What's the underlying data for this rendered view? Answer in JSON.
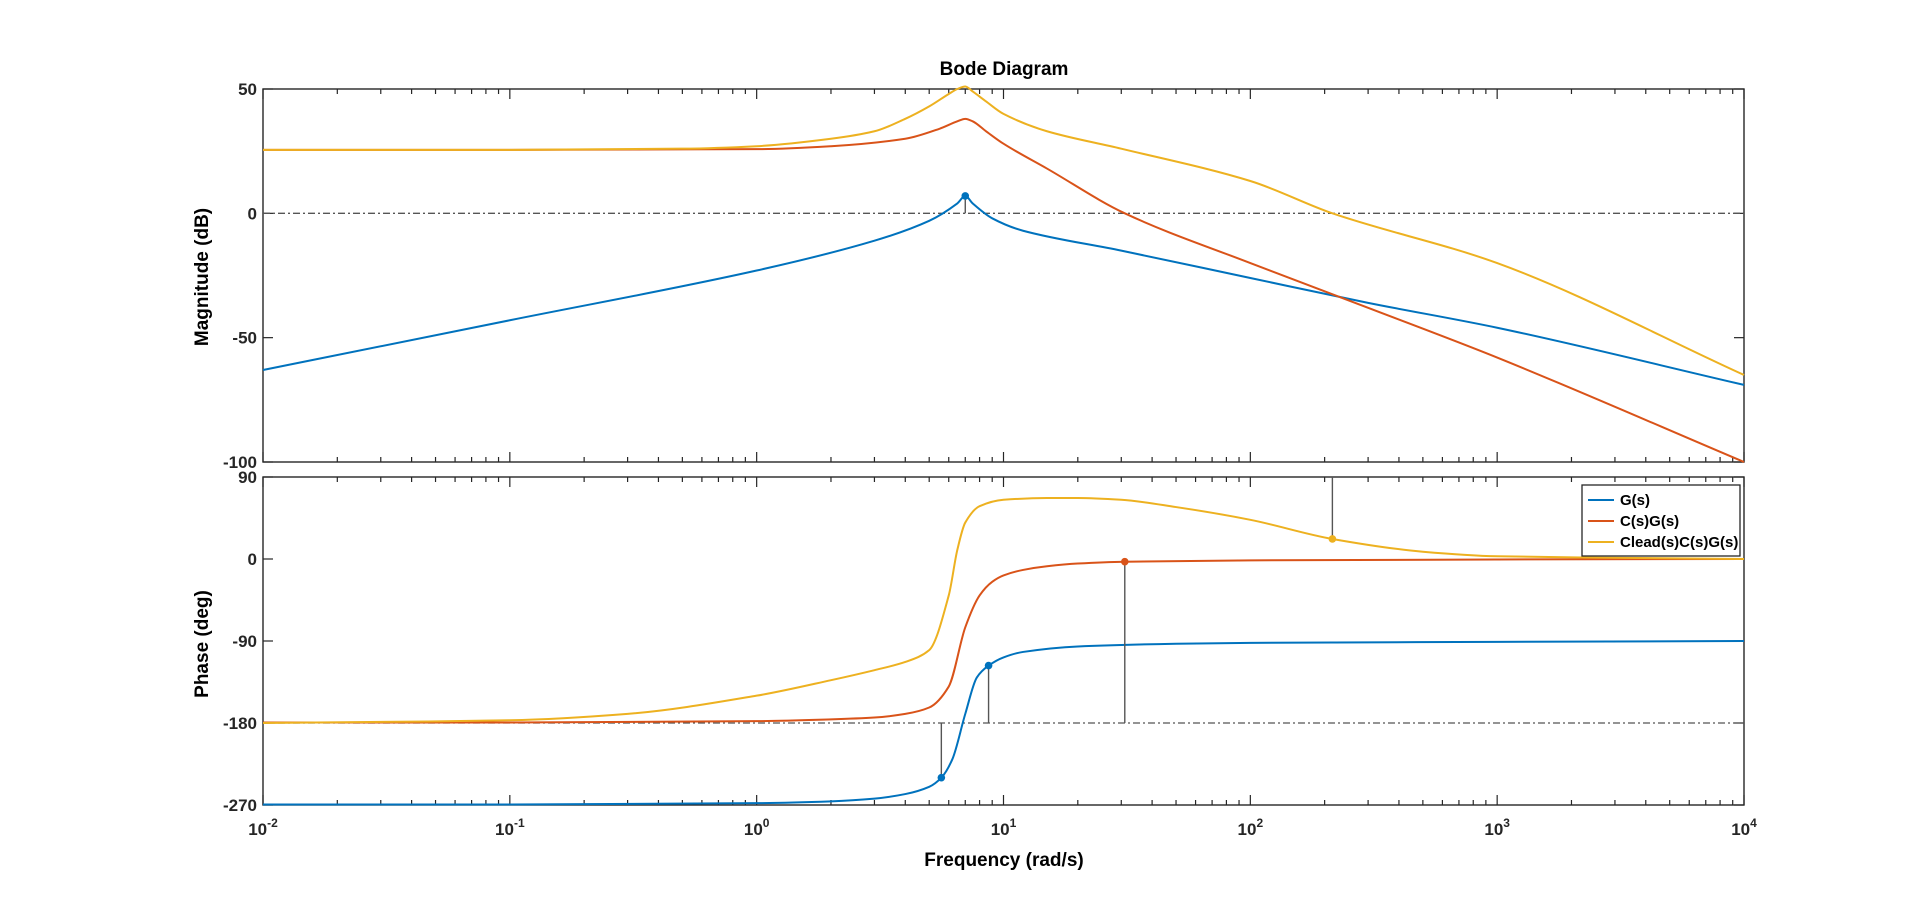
{
  "chart_data": {
    "type": "line",
    "title": "Bode Diagram",
    "xlabel": "Frequency  (rad/s)",
    "x_scale": "log",
    "xlim": [
      0.01,
      10000
    ],
    "x_tick_labels": [
      {
        "base": "10",
        "exp": "-2"
      },
      {
        "base": "10",
        "exp": "-1"
      },
      {
        "base": "10",
        "exp": "0"
      },
      {
        "base": "10",
        "exp": "1"
      },
      {
        "base": "10",
        "exp": "2"
      },
      {
        "base": "10",
        "exp": "3"
      },
      {
        "base": "10",
        "exp": "4"
      }
    ],
    "legend_position": "top-right",
    "grid": false,
    "panels": [
      {
        "ylabel": "Magnitude (dB)",
        "ylim": [
          -100,
          50
        ],
        "y_ticks": [
          -100,
          -50,
          0,
          50
        ],
        "reference_line": 0,
        "series": [
          {
            "name": "G(s)",
            "color": "#0072BD",
            "x": [
              0.01,
              0.1,
              1,
              3,
              5,
              6.5,
              7,
              7.5,
              9,
              12,
              30,
              100,
              300,
              1000,
              10000
            ],
            "y": [
              -63,
              -43,
              -23,
              -11,
              -3,
              4,
              7,
              4,
              -2,
              -7,
              -15,
              -26,
              -36,
              -46,
              -69
            ],
            "markers": [
              {
                "x": 7,
                "y": 7,
                "stem_to": 0
              }
            ]
          },
          {
            "name": "C(s)G(s)",
            "color": "#D95319",
            "x": [
              0.01,
              0.1,
              1,
              2,
              4,
              5.5,
              6.5,
              7,
              7.5,
              8.5,
              10,
              15,
              31,
              100,
              300,
              1000,
              10000
            ],
            "y": [
              25.5,
              25.5,
              25.8,
              27,
              30,
              34,
              37,
              38,
              37,
              33,
              28,
              18,
              0,
              -20,
              -38,
              -58,
              -100
            ],
            "markers": []
          },
          {
            "name": "Clead(s)C(s)G(s)",
            "color": "#EDB120",
            "x": [
              0.01,
              0.1,
              0.5,
              1,
              2,
              3,
              4,
              5,
              6,
              6.5,
              7,
              7.5,
              8.5,
              10,
              15,
              30,
              100,
              215,
              1000,
              10000
            ],
            "y": [
              25.5,
              25.5,
              26,
              27,
              30,
              33,
              38,
              43,
              48,
              50,
              51,
              49,
              45,
              40,
              33,
              26,
              13,
              0,
              -20,
              -65
            ],
            "markers": []
          }
        ]
      },
      {
        "ylabel": "Phase (deg)",
        "ylim": [
          -270,
          90
        ],
        "y_ticks": [
          -270,
          -180,
          -90,
          0,
          90
        ],
        "reference_line": -180,
        "series": [
          {
            "name": "G(s)",
            "color": "#0072BD",
            "x": [
              0.01,
              0.1,
              1,
              2,
              3,
              4,
              5,
              5.6,
              6.2,
              7,
              7.8,
              8.7,
              10,
              12,
              20,
              50,
              100,
              1000,
              10000
            ],
            "y": [
              -269.5,
              -269.5,
              -268,
              -266,
              -263,
              -258,
              -250,
              -240,
              -220,
              -170,
              -130,
              -117,
              -108,
              -102,
              -96,
              -93,
              -92,
              -91,
              -90
            ],
            "markers": [
              {
                "x": 5.6,
                "y": -240,
                "stem_to": -180
              },
              {
                "x": 8.7,
                "y": -117,
                "stem_to": -180
              }
            ]
          },
          {
            "name": "C(s)G(s)",
            "color": "#D95319",
            "x": [
              0.01,
              0.1,
              1,
              2,
              3,
              4,
              5,
              6,
              7,
              8,
              9,
              10,
              12,
              15,
              20,
              31,
              100,
              1000,
              10000
            ],
            "y": [
              -179.5,
              -179.5,
              -178,
              -176,
              -174,
              -170,
              -163,
              -140,
              -75,
              -40,
              -25,
              -18,
              -12,
              -8,
              -5,
              -3,
              -1.5,
              -0.5,
              0
            ],
            "markers": [
              {
                "x": 31,
                "y": -3,
                "stem_to": -180
              }
            ]
          },
          {
            "name": "Clead(s)C(s)G(s)",
            "color": "#EDB120",
            "x": [
              0.01,
              0.1,
              0.3,
              1,
              2,
              3,
              4,
              5,
              6,
              6.5,
              7,
              8,
              10,
              15,
              20,
              30,
              50,
              100,
              215,
              500,
              1000,
              10000
            ],
            "y": [
              -180,
              -177,
              -170,
              -150,
              -133,
              -122,
              -113,
              -100,
              -40,
              10,
              40,
              58,
              65,
              67,
              67,
              65,
              57,
              43,
              22,
              8,
              3,
              0
            ],
            "markers": [
              {
                "x": 215,
                "y": 22,
                "stem_to": 90
              }
            ]
          }
        ]
      }
    ]
  }
}
